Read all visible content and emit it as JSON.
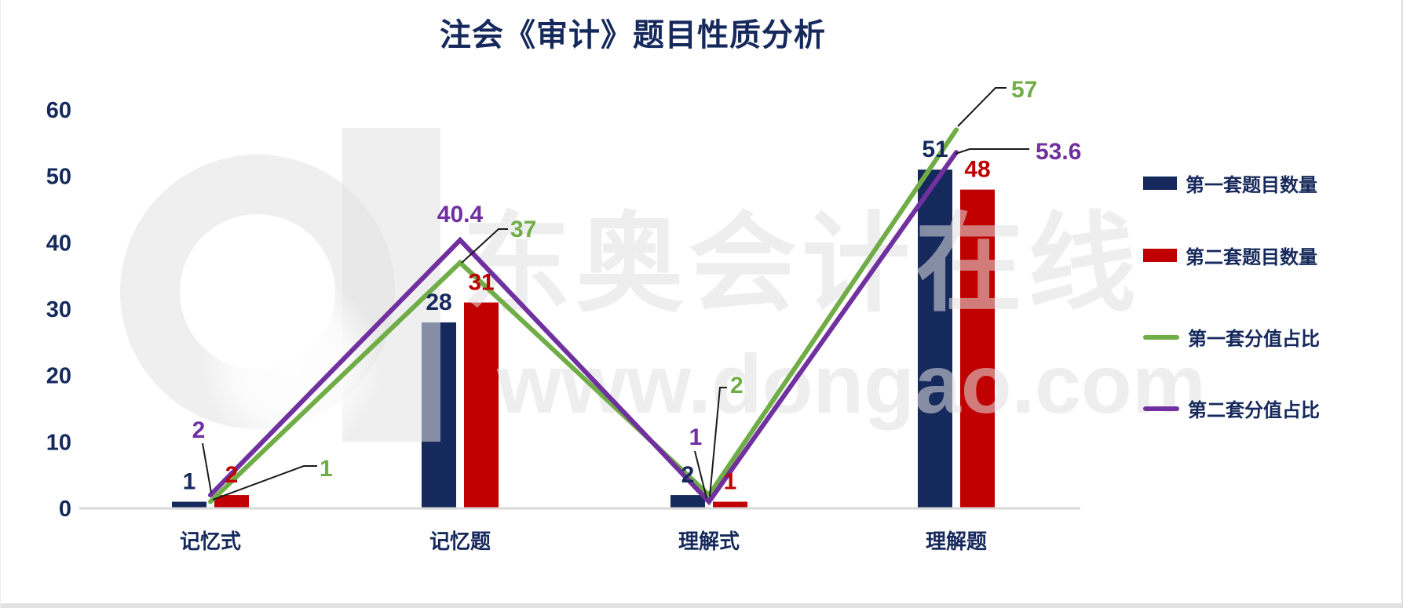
{
  "watermark": {
    "brand": "东奥会计在线",
    "url": "www.dongao.com",
    "logo": "d-logo"
  },
  "chart_data": {
    "type": "combo",
    "title": "注会《审计》题目性质分析",
    "categories": [
      "记忆式",
      "记忆题",
      "理解式",
      "理解题"
    ],
    "series": [
      {
        "name": "第一套题目数量",
        "type": "bar",
        "color": "#16295c",
        "values": [
          1,
          28,
          2,
          51
        ]
      },
      {
        "name": "第二套题目数量",
        "type": "bar",
        "color": "#c00000",
        "values": [
          2,
          31,
          1,
          48
        ]
      },
      {
        "name": "第一套分值占比",
        "type": "line",
        "color": "#70ad47",
        "values": [
          1,
          37,
          2,
          57
        ]
      },
      {
        "name": "第二套分值占比",
        "type": "line",
        "color": "#7030a0",
        "values": [
          2,
          40.4,
          1,
          53.6
        ]
      }
    ],
    "ylim": [
      0,
      60
    ],
    "yticks": [
      0,
      10,
      20,
      30,
      40,
      50,
      60
    ],
    "grid": false,
    "legend_position": "right",
    "axis_text_color": "#16295c",
    "baseline_color": "#d9d9d9",
    "leader_line_color": "#1a1a1a"
  }
}
